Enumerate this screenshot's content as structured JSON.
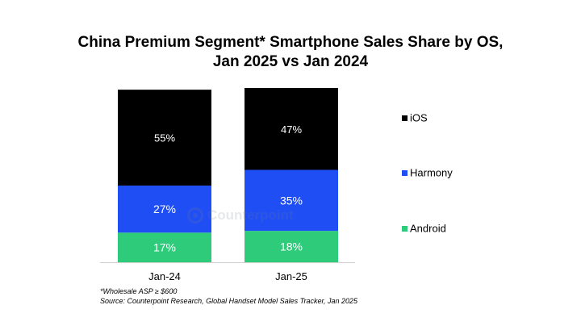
{
  "chart_data": {
    "type": "stacked-bar",
    "title": [
      "China Premium Segment* Smartphone Sales Share by OS,",
      "Jan 2025 vs Jan 2024"
    ],
    "categories": [
      "Jan-24",
      "Jan-25"
    ],
    "series": [
      {
        "name": "Android",
        "color": "#2ecc7a",
        "values": [
          17,
          18
        ],
        "labels": [
          "17%",
          "18%"
        ]
      },
      {
        "name": "Harmony",
        "color": "#1f4ef5",
        "values": [
          27,
          35
        ],
        "labels": [
          "27%",
          "35%"
        ]
      },
      {
        "name": "iOS",
        "color": "#000000",
        "values": [
          55,
          47
        ],
        "labels": [
          "55%",
          "47%"
        ]
      }
    ],
    "legend_order": [
      "iOS",
      "Harmony",
      "Android"
    ],
    "ylim": [
      0,
      100
    ],
    "xlabel": "",
    "ylabel": "",
    "legend_position": "right"
  },
  "watermark": "Counterpoint",
  "footnotes": [
    "*Wholesale ASP ≥ $600",
    "Source: Counterpoint Research, Global Handset Model Sales Tracker, Jan 2025"
  ]
}
